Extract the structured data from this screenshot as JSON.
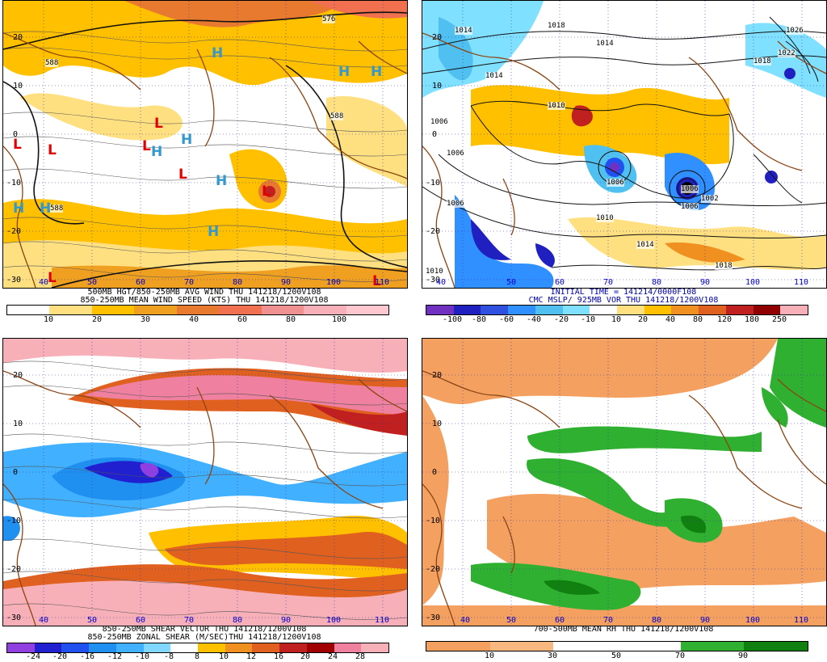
{
  "panels": {
    "p1": {
      "caption1": "500MB HGT/850-250MB AVG WIND THU 141218/1200V108",
      "caption2": "850-250MB MEAN WIND SPEED (KTS) THU 141218/1200V108",
      "lat_labels": [
        "20",
        "10",
        "0",
        "-10",
        "-20",
        "-30"
      ],
      "lon_labels": [
        "40",
        "50",
        "60",
        "70",
        "80",
        "90",
        "100",
        "110"
      ],
      "contour_labels": [
        "576",
        "588",
        "588",
        "588"
      ],
      "symbols_H": [
        "H",
        "H",
        "H",
        "H",
        "H",
        "H",
        "H",
        "H",
        "H"
      ],
      "symbols_L": [
        "L",
        "L",
        "L",
        "L",
        "L",
        "L",
        "L",
        "L"
      ],
      "legend_ticks": [
        "10",
        "20",
        "30",
        "40",
        "60",
        "80",
        "100"
      ]
    },
    "p2": {
      "caption1": "INITIAL TIME = 141214/0000F108",
      "caption2": "CMC MSLP/ 925MB VOR THU 141218/1200V108",
      "isobar_labels": [
        "1014",
        "1018",
        "1014",
        "1026",
        "1022",
        "1018",
        "1014",
        "1010",
        "1006",
        "1006",
        "1006",
        "1006",
        "1002",
        "1006",
        "1010",
        "1014",
        "1018",
        "1006",
        "1010"
      ],
      "lat_labels": [
        "20",
        "10",
        "0",
        "-10",
        "-20",
        "-30"
      ],
      "lon_labels": [
        "40",
        "50",
        "60",
        "70",
        "80",
        "90",
        "100",
        "110"
      ],
      "legend_ticks": [
        "-100",
        "-80",
        "-60",
        "-40",
        "-20",
        "-10",
        "10",
        "20",
        "40",
        "80",
        "120",
        "180",
        "250"
      ]
    },
    "p3": {
      "caption1": "850-250MB SHEAR VECTOR THU 141218/1200V108",
      "caption2": "850-250MB ZONAL SHEAR (M/SEC)THU 141218/1200V108",
      "lat_labels": [
        "20",
        "10",
        "0",
        "-10",
        "-20",
        "-30"
      ],
      "lon_labels": [
        "40",
        "50",
        "60",
        "70",
        "80",
        "90",
        "100",
        "110"
      ],
      "legend_ticks": [
        "-24",
        "-20",
        "-16",
        "-12",
        "-10",
        "-8",
        "8",
        "10",
        "12",
        "16",
        "20",
        "24",
        "28"
      ]
    },
    "p4": {
      "caption1": "700-500MB MEAN RH THU 141218/1200V108",
      "lat_labels": [
        "20",
        "10",
        "0",
        "-10",
        "-20",
        "-30"
      ],
      "lon_labels": [
        "40",
        "50",
        "60",
        "70",
        "80",
        "90",
        "100",
        "110"
      ],
      "legend_ticks": [
        "10",
        "30",
        "50",
        "70",
        "90"
      ]
    }
  },
  "colors": {
    "wind_scale": [
      "#ffffff",
      "#ffe080",
      "#ffc000",
      "#f0a020",
      "#e87a30",
      "#f07050",
      "#f09090",
      "#f8b0b8",
      "#ffc8d0"
    ],
    "vort_scale": [
      "#7030c0",
      "#2020c0",
      "#3050e0",
      "#3090ff",
      "#50c0f0",
      "#80e0ff",
      "#ffffff",
      "#ffe080",
      "#ffc000",
      "#f09020",
      "#e06020",
      "#c02020",
      "#900000",
      "#f8b0b8"
    ],
    "shear_scale": [
      "#9040e0",
      "#2020d0",
      "#2050f0",
      "#2090f0",
      "#40b0ff",
      "#80d8ff",
      "#ffffff",
      "#ffc000",
      "#f09020",
      "#e06020",
      "#c02020",
      "#a00000",
      "#f080a0",
      "#f8b0b8"
    ],
    "rh_scale": [
      "#f4a060",
      "#f8b880",
      "#ffffff",
      "#ffffff",
      "#30b030",
      "#108010"
    ],
    "coast": "#8b4513",
    "grid": "#3333aa"
  }
}
